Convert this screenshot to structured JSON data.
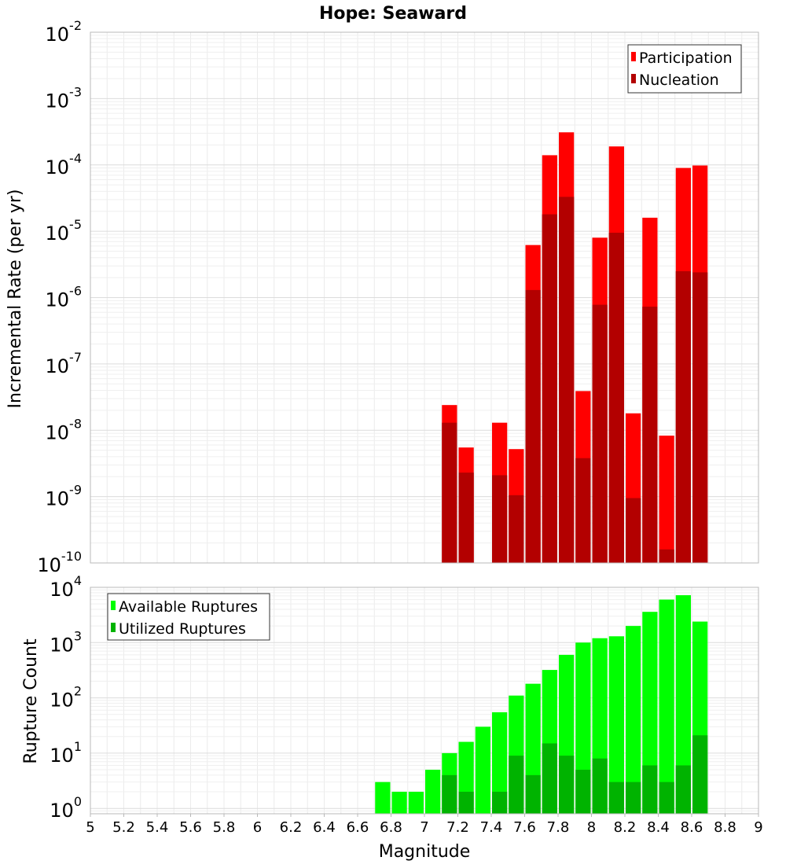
{
  "title": "Hope: Seaward",
  "chart_data": [
    {
      "type": "bar",
      "ylabel": "Incremental Rate (per yr)",
      "xlim": [
        5,
        9
      ],
      "ylim": [
        1e-10,
        0.01
      ],
      "y_scale": "log",
      "y_tick_exponents": [
        -2,
        -3,
        -4,
        -5,
        -6,
        -7,
        -8,
        -9,
        -10
      ],
      "grid": true,
      "legend_position": "top-right",
      "bar_width": 0.1,
      "series": [
        {
          "name": "Participation",
          "color": "#ff0000",
          "x": [
            7.1,
            7.2,
            7.4,
            7.5,
            7.6,
            7.7,
            7.8,
            7.9,
            8.0,
            8.1,
            8.2,
            8.3,
            8.4,
            8.5,
            8.6
          ],
          "values": [
            2.4e-08,
            5.5e-09,
            1.3e-08,
            5.2e-09,
            6.2e-06,
            0.00014,
            0.00031,
            3.9e-08,
            8e-06,
            0.00019,
            1.8e-08,
            1.6e-05,
            8.3e-09,
            9e-05,
            9.8e-05
          ]
        },
        {
          "name": "Nucleation",
          "color": "#b30000",
          "x": [
            7.1,
            7.2,
            7.4,
            7.5,
            7.6,
            7.7,
            7.8,
            7.9,
            8.0,
            8.1,
            8.2,
            8.3,
            8.4,
            8.5,
            8.6
          ],
          "values": [
            1.3e-08,
            2.3e-09,
            2.1e-09,
            1.05e-09,
            1.3e-06,
            1.8e-05,
            3.3e-05,
            3.8e-09,
            7.8e-07,
            9.5e-06,
            9.5e-10,
            7.3e-07,
            1.6e-10,
            2.5e-06,
            2.4e-06
          ]
        }
      ]
    },
    {
      "type": "bar",
      "xlabel": "Magnitude",
      "ylabel": "Rupture Count",
      "xlim": [
        5,
        9
      ],
      "ylim": [
        0.8,
        10000.0
      ],
      "y_scale": "log",
      "y_tick_exponents": [
        4,
        3,
        2,
        1,
        0
      ],
      "grid": true,
      "legend_position": "top-left",
      "bar_width": 0.1,
      "x_ticks": [
        "5",
        "5.2",
        "5.4",
        "5.6",
        "5.8",
        "6",
        "6.2",
        "6.4",
        "6.6",
        "6.8",
        "7",
        "7.2",
        "7.4",
        "7.6",
        "7.8",
        "8",
        "8.2",
        "8.4",
        "8.6",
        "8.8",
        "9"
      ],
      "series": [
        {
          "name": "Available Ruptures",
          "color": "#00ff00",
          "x": [
            6.7,
            6.8,
            6.9,
            7.0,
            7.1,
            7.2,
            7.3,
            7.4,
            7.5,
            7.6,
            7.7,
            7.8,
            7.9,
            8.0,
            8.1,
            8.2,
            8.3,
            8.4,
            8.5,
            8.6
          ],
          "values": [
            3,
            2,
            2,
            5,
            10,
            16,
            30,
            55,
            110,
            180,
            320,
            600,
            1000,
            1200,
            1300,
            2000,
            3600,
            6000,
            7200,
            2400
          ]
        },
        {
          "name": "Utilized Ruptures",
          "color": "#00b300",
          "x": [
            7.1,
            7.2,
            7.4,
            7.5,
            7.6,
            7.7,
            7.8,
            7.9,
            8.0,
            8.1,
            8.2,
            8.3,
            8.4,
            8.5,
            8.6
          ],
          "values": [
            4,
            2,
            2,
            9,
            4,
            15,
            9,
            5,
            8,
            3,
            3,
            6,
            3,
            6,
            21
          ]
        }
      ]
    }
  ]
}
